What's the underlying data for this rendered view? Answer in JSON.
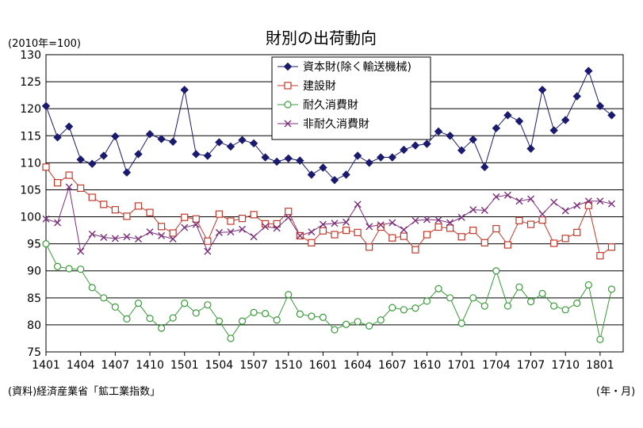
{
  "chart_data": {
    "type": "line",
    "title": "財別の出荷動向",
    "unit_label": "(2010年=100)",
    "source": "(資料)経済産業省「鉱工業指数」",
    "x_axis_note": "(年・月)",
    "ylim": [
      75,
      130
    ],
    "yticks": [
      75,
      80,
      85,
      90,
      95,
      100,
      105,
      110,
      115,
      120,
      125,
      130
    ],
    "grid": true,
    "legend_position": "top-center",
    "x": [
      "1401",
      "1402",
      "1403",
      "1404",
      "1405",
      "1406",
      "1407",
      "1408",
      "1409",
      "1410",
      "1411",
      "1412",
      "1501",
      "1502",
      "1503",
      "1504",
      "1505",
      "1506",
      "1507",
      "1508",
      "1509",
      "1510",
      "1511",
      "1512",
      "1601",
      "1602",
      "1603",
      "1604",
      "1605",
      "1606",
      "1607",
      "1608",
      "1609",
      "1610",
      "1611",
      "1612",
      "1701",
      "1702",
      "1703",
      "1704",
      "1705",
      "1706",
      "1707",
      "1708",
      "1709",
      "1710",
      "1711",
      "1712",
      "1801",
      "1802",
      "1803"
    ],
    "x_tick_labels": [
      "1401",
      "1404",
      "1407",
      "1410",
      "1501",
      "1504",
      "1507",
      "1510",
      "1601",
      "1604",
      "1607",
      "1610",
      "1701",
      "1704",
      "1707",
      "1710",
      "1801"
    ],
    "series": [
      {
        "name": "資本財(除く輸送機械)",
        "color": "#1a1a6e",
        "marker": "diamond",
        "values": [
          120.5,
          114.7,
          116.7,
          110.6,
          109.8,
          111.3,
          114.9,
          108.2,
          111.6,
          115.3,
          114.4,
          113.9,
          123.5,
          111.6,
          111.3,
          113.8,
          113.0,
          114.2,
          113.6,
          111.0,
          110.2,
          110.8,
          110.4,
          107.8,
          109.1,
          106.8,
          107.8,
          111.3,
          110.0,
          111.0,
          111.0,
          112.4,
          113.2,
          113.5,
          115.8,
          115.0,
          112.3,
          114.3,
          109.2,
          116.4,
          118.8,
          117.7,
          112.6,
          123.5,
          116.0,
          117.9,
          122.3,
          127.0,
          120.5,
          118.8,
          null
        ]
      },
      {
        "name": "建設財",
        "color": "#c0392b",
        "marker": "square",
        "values": [
          109.2,
          106.3,
          107.7,
          105.3,
          103.6,
          102.3,
          101.3,
          100.1,
          102.0,
          100.8,
          98.2,
          97.0,
          99.9,
          99.6,
          95.5,
          100.5,
          99.2,
          99.7,
          100.4,
          98.7,
          98.7,
          101.0,
          96.5,
          95.2,
          97.4,
          96.7,
          97.5,
          97.1,
          94.4,
          98.1,
          96.1,
          96.4,
          93.9,
          96.7,
          98.1,
          97.9,
          96.3,
          97.5,
          95.2,
          97.8,
          94.8,
          99.3,
          98.6,
          99.4,
          95.1,
          96.0,
          97.1,
          102.1,
          92.8,
          94.4,
          null
        ]
      },
      {
        "name": "耐久消費財",
        "color": "#3a9a3a",
        "marker": "circle",
        "values": [
          95.0,
          90.8,
          90.4,
          90.3,
          86.9,
          85.0,
          83.3,
          81.1,
          84.0,
          81.2,
          79.4,
          81.3,
          84.0,
          82.2,
          83.7,
          80.7,
          77.5,
          80.7,
          82.3,
          82.1,
          80.9,
          85.6,
          82.0,
          81.6,
          81.4,
          79.1,
          80.1,
          80.6,
          79.8,
          80.9,
          83.2,
          82.8,
          83.1,
          84.4,
          86.7,
          85.0,
          80.3,
          85.0,
          83.5,
          90.0,
          83.5,
          87.0,
          84.3,
          85.8,
          83.5,
          82.8,
          84.0,
          87.4,
          77.3,
          86.6,
          null
        ]
      },
      {
        "name": "非耐久消費財",
        "color": "#7a2f7a",
        "marker": "x",
        "values": [
          99.6,
          98.9,
          105.5,
          93.6,
          96.8,
          96.2,
          96.0,
          96.3,
          95.9,
          97.2,
          96.5,
          95.9,
          98.0,
          98.6,
          93.6,
          97.1,
          97.2,
          97.7,
          96.3,
          98.2,
          97.9,
          99.9,
          96.5,
          97.2,
          98.6,
          98.8,
          99.0,
          102.3,
          98.2,
          98.5,
          98.9,
          97.6,
          99.3,
          99.5,
          99.4,
          98.9,
          99.9,
          101.3,
          101.2,
          103.7,
          104.0,
          102.9,
          103.3,
          100.5,
          102.7,
          101.1,
          102.1,
          102.9,
          102.9,
          102.4,
          null
        ]
      }
    ]
  }
}
